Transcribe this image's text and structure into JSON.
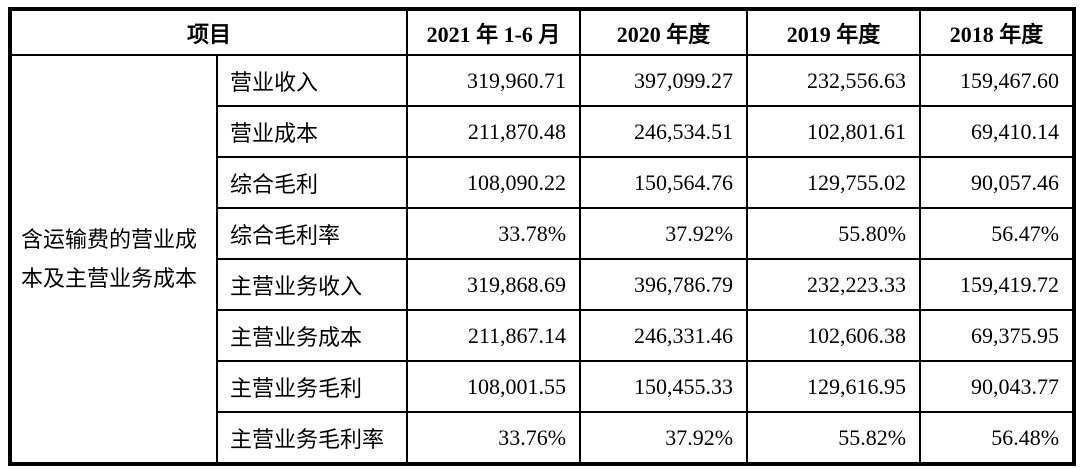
{
  "table": {
    "header": {
      "item_label": "项目",
      "periods": [
        "2021 年 1-6 月",
        "2020 年度",
        "2019 年度",
        "2018 年度"
      ]
    },
    "group_label": "含运输费的营业成本及主营业务成本",
    "rows": [
      {
        "label": "营业收入",
        "values": [
          "319,960.71",
          "397,099.27",
          "232,556.63",
          "159,467.60"
        ]
      },
      {
        "label": "营业成本",
        "values": [
          "211,870.48",
          "246,534.51",
          "102,801.61",
          "69,410.14"
        ]
      },
      {
        "label": "综合毛利",
        "values": [
          "108,090.22",
          "150,564.76",
          "129,755.02",
          "90,057.46"
        ]
      },
      {
        "label": "综合毛利率",
        "values": [
          "33.78%",
          "37.92%",
          "55.80%",
          "56.47%"
        ]
      },
      {
        "label": "主营业务收入",
        "values": [
          "319,868.69",
          "396,786.79",
          "232,223.33",
          "159,419.72"
        ]
      },
      {
        "label": "主营业务成本",
        "values": [
          "211,867.14",
          "246,331.46",
          "102,606.38",
          "69,375.95"
        ]
      },
      {
        "label": "主营业务毛利",
        "values": [
          "108,001.55",
          "150,455.33",
          "129,616.95",
          "90,043.77"
        ]
      },
      {
        "label": "主营业务毛利率",
        "values": [
          "33.76%",
          "37.92%",
          "55.82%",
          "56.48%"
        ]
      }
    ]
  }
}
